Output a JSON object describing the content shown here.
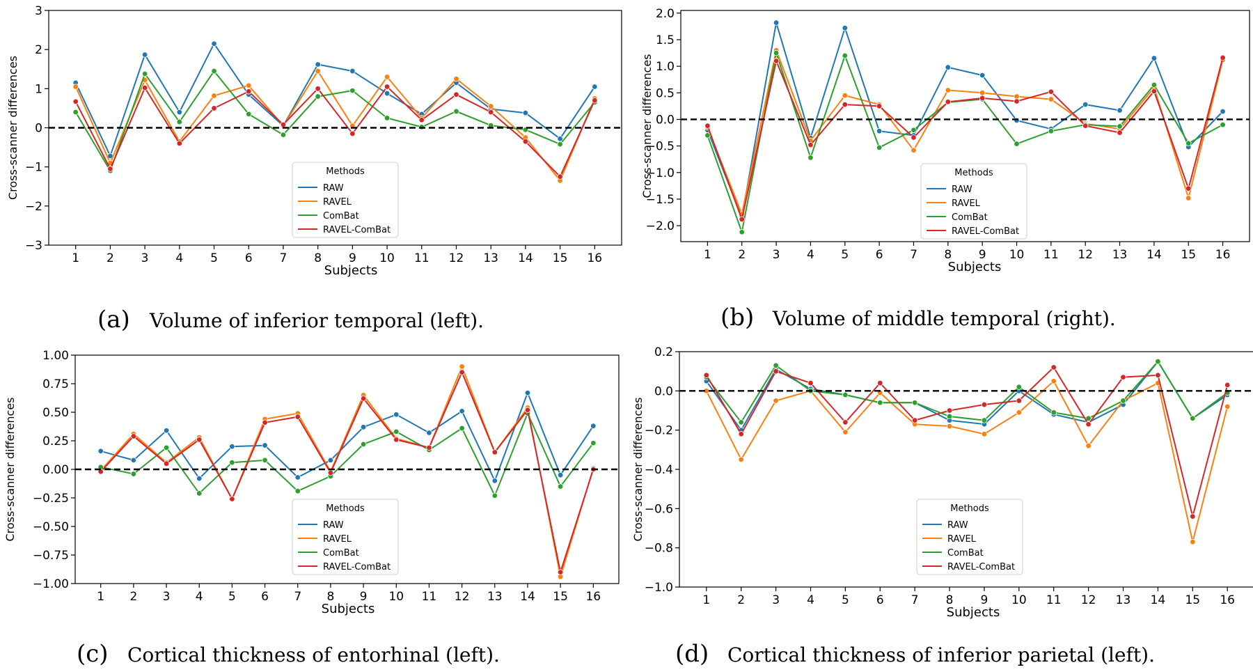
{
  "legend_title": "Methods",
  "chart_data": [
    {
      "type": "line",
      "panel": "(a)",
      "caption": "Volume of inferior temporal (left).",
      "xlabel": "Subjects",
      "ylabel": "Cross-scanner differences",
      "x": [
        1,
        2,
        3,
        4,
        5,
        6,
        7,
        8,
        9,
        10,
        11,
        12,
        13,
        14,
        15,
        16
      ],
      "ylim": [
        -3,
        3
      ],
      "yticks": [
        -3,
        -2,
        -1,
        0,
        1,
        2,
        3
      ],
      "ytick_labels": [
        "−3",
        "−2",
        "−1",
        "0",
        "1",
        "2",
        "3"
      ],
      "legend_position": "bottom-center",
      "series": [
        {
          "name": "RAW",
          "color": "#1f77b4",
          "values": [
            1.15,
            -0.72,
            1.87,
            0.4,
            2.15,
            0.85,
            0.05,
            1.62,
            1.45,
            0.88,
            0.35,
            1.15,
            0.48,
            0.38,
            -0.28,
            1.05
          ]
        },
        {
          "name": "RAVEL",
          "color": "#ff7f0e",
          "values": [
            1.05,
            -0.9,
            1.22,
            -0.35,
            0.82,
            1.08,
            0.05,
            1.45,
            0.05,
            1.3,
            0.25,
            1.25,
            0.55,
            -0.25,
            -1.35,
            0.75
          ]
        },
        {
          "name": "ComBat",
          "color": "#2ca02c",
          "values": [
            0.4,
            -1.1,
            1.38,
            0.15,
            1.45,
            0.35,
            -0.18,
            0.8,
            0.95,
            0.25,
            0.02,
            0.42,
            0.06,
            -0.05,
            -0.42,
            0.65
          ]
        },
        {
          "name": "RAVEL-ComBat",
          "color": "#d62728",
          "values": [
            0.67,
            -1.05,
            1.02,
            -0.4,
            0.5,
            0.93,
            0.08,
            1.0,
            -0.15,
            1.05,
            0.2,
            0.85,
            0.4,
            -0.35,
            -1.25,
            0.7
          ]
        }
      ]
    },
    {
      "type": "line",
      "panel": "(b)",
      "caption": "Volume of middle temporal (right).",
      "xlabel": "Subjects",
      "ylabel": "Cross-scanner differences",
      "x": [
        1,
        2,
        3,
        4,
        5,
        6,
        7,
        8,
        9,
        10,
        11,
        12,
        13,
        14,
        15,
        16
      ],
      "ylim": [
        -2.3,
        2.05
      ],
      "yticks": [
        -2.0,
        -1.5,
        -1.0,
        -0.5,
        0.0,
        0.5,
        1.0,
        1.5,
        2.0
      ],
      "ytick_labels": [
        "−2.0",
        "−1.5",
        "−1.0",
        "−0.5",
        "0.0",
        "0.5",
        "1.0",
        "1.5",
        "2.0"
      ],
      "legend_position": "bottom-center",
      "series": [
        {
          "name": "RAW",
          "color": "#1f77b4",
          "values": [
            -0.2,
            -1.85,
            1.82,
            -0.35,
            1.72,
            -0.22,
            -0.3,
            0.98,
            0.83,
            -0.02,
            -0.18,
            0.28,
            0.17,
            1.15,
            -0.52,
            0.15
          ]
        },
        {
          "name": "RAVEL",
          "color": "#ff7f0e",
          "values": [
            -0.15,
            -1.78,
            1.3,
            -0.4,
            0.45,
            0.28,
            -0.58,
            0.55,
            0.5,
            0.43,
            0.38,
            -0.08,
            -0.18,
            0.6,
            -1.48,
            1.12
          ]
        },
        {
          "name": "ComBat",
          "color": "#2ca02c",
          "values": [
            -0.3,
            -2.12,
            1.25,
            -0.72,
            1.2,
            -0.53,
            -0.2,
            0.32,
            0.38,
            -0.46,
            -0.22,
            -0.1,
            -0.13,
            0.65,
            -0.45,
            -0.1
          ]
        },
        {
          "name": "RAVEL-ComBat",
          "color": "#d62728",
          "values": [
            -0.12,
            -1.88,
            1.1,
            -0.48,
            0.28,
            0.25,
            -0.34,
            0.33,
            0.4,
            0.34,
            0.52,
            -0.12,
            -0.25,
            0.53,
            -1.3,
            1.16
          ]
        }
      ]
    },
    {
      "type": "line",
      "panel": "(c)",
      "caption": "Cortical thickness of entorhinal (left).",
      "xlabel": "Subjects",
      "ylabel": "Cross-scanner differences",
      "x": [
        1,
        2,
        3,
        4,
        5,
        6,
        7,
        8,
        9,
        10,
        11,
        12,
        13,
        14,
        15,
        16
      ],
      "ylim": [
        -1.0,
        1.0
      ],
      "yticks": [
        -1.0,
        -0.75,
        -0.5,
        -0.25,
        0.0,
        0.25,
        0.5,
        0.75,
        1.0
      ],
      "ytick_labels": [
        "−1.00",
        "−0.75",
        "−0.50",
        "−0.25",
        "0.00",
        "0.25",
        "0.50",
        "0.75",
        "1.00"
      ],
      "legend_position": "bottom-center",
      "series": [
        {
          "name": "RAW",
          "color": "#1f77b4",
          "values": [
            0.16,
            0.08,
            0.34,
            -0.08,
            0.2,
            0.21,
            -0.07,
            0.08,
            0.37,
            0.48,
            0.32,
            0.51,
            -0.1,
            0.67,
            -0.05,
            0.38
          ]
        },
        {
          "name": "RAVEL",
          "color": "#ff7f0e",
          "values": [
            -0.01,
            0.31,
            0.06,
            0.28,
            -0.26,
            0.44,
            0.49,
            -0.02,
            0.65,
            0.27,
            0.19,
            0.9,
            0.15,
            0.54,
            -0.94,
            0.01
          ]
        },
        {
          "name": "ComBat",
          "color": "#2ca02c",
          "values": [
            0.02,
            -0.04,
            0.19,
            -0.21,
            0.06,
            0.08,
            -0.19,
            -0.06,
            0.22,
            0.33,
            0.17,
            0.36,
            -0.23,
            0.49,
            -0.15,
            0.23
          ]
        },
        {
          "name": "RAVEL-ComBat",
          "color": "#d62728",
          "values": [
            -0.02,
            0.29,
            0.05,
            0.26,
            -0.26,
            0.41,
            0.46,
            -0.03,
            0.62,
            0.26,
            0.19,
            0.85,
            0.15,
            0.52,
            -0.9,
            0.0
          ]
        }
      ]
    },
    {
      "type": "line",
      "panel": "(d)",
      "caption": "Cortical thickness of inferior parietal (left).",
      "xlabel": "Subjects",
      "ylabel": "Cross-scanner differences",
      "x": [
        1,
        2,
        3,
        4,
        5,
        6,
        7,
        8,
        9,
        10,
        11,
        12,
        13,
        14,
        15,
        16
      ],
      "ylim": [
        -1.0,
        0.2
      ],
      "yticks": [
        -1.0,
        -0.8,
        -0.6,
        -0.4,
        -0.2,
        0.0,
        0.2
      ],
      "ytick_labels": [
        "−1.0",
        "−0.8",
        "−0.6",
        "−0.4",
        "−0.2",
        "0.0",
        "0.2"
      ],
      "legend_position": "bottom-center",
      "series": [
        {
          "name": "RAW",
          "color": "#1f77b4",
          "values": [
            0.05,
            -0.2,
            0.11,
            0.01,
            -0.02,
            -0.06,
            -0.06,
            -0.15,
            -0.17,
            0.0,
            -0.12,
            -0.16,
            -0.07,
            0.15,
            -0.14,
            -0.02
          ]
        },
        {
          "name": "RAVEL",
          "color": "#ff7f0e",
          "values": [
            0.0,
            -0.35,
            -0.05,
            0.0,
            -0.21,
            -0.01,
            -0.17,
            -0.18,
            -0.22,
            -0.11,
            0.05,
            -0.28,
            -0.05,
            0.04,
            -0.77,
            -0.08
          ]
        },
        {
          "name": "ComBat",
          "color": "#2ca02c",
          "values": [
            0.07,
            -0.16,
            0.13,
            0.0,
            -0.02,
            -0.06,
            -0.06,
            -0.13,
            -0.15,
            0.02,
            -0.11,
            -0.14,
            -0.05,
            0.15,
            -0.14,
            -0.01
          ]
        },
        {
          "name": "RAVEL-ComBat",
          "color": "#d62728",
          "values": [
            0.08,
            -0.22,
            0.1,
            0.04,
            -0.16,
            0.04,
            -0.15,
            -0.1,
            -0.07,
            -0.05,
            0.12,
            -0.17,
            0.07,
            0.08,
            -0.64,
            0.03
          ]
        }
      ]
    }
  ]
}
